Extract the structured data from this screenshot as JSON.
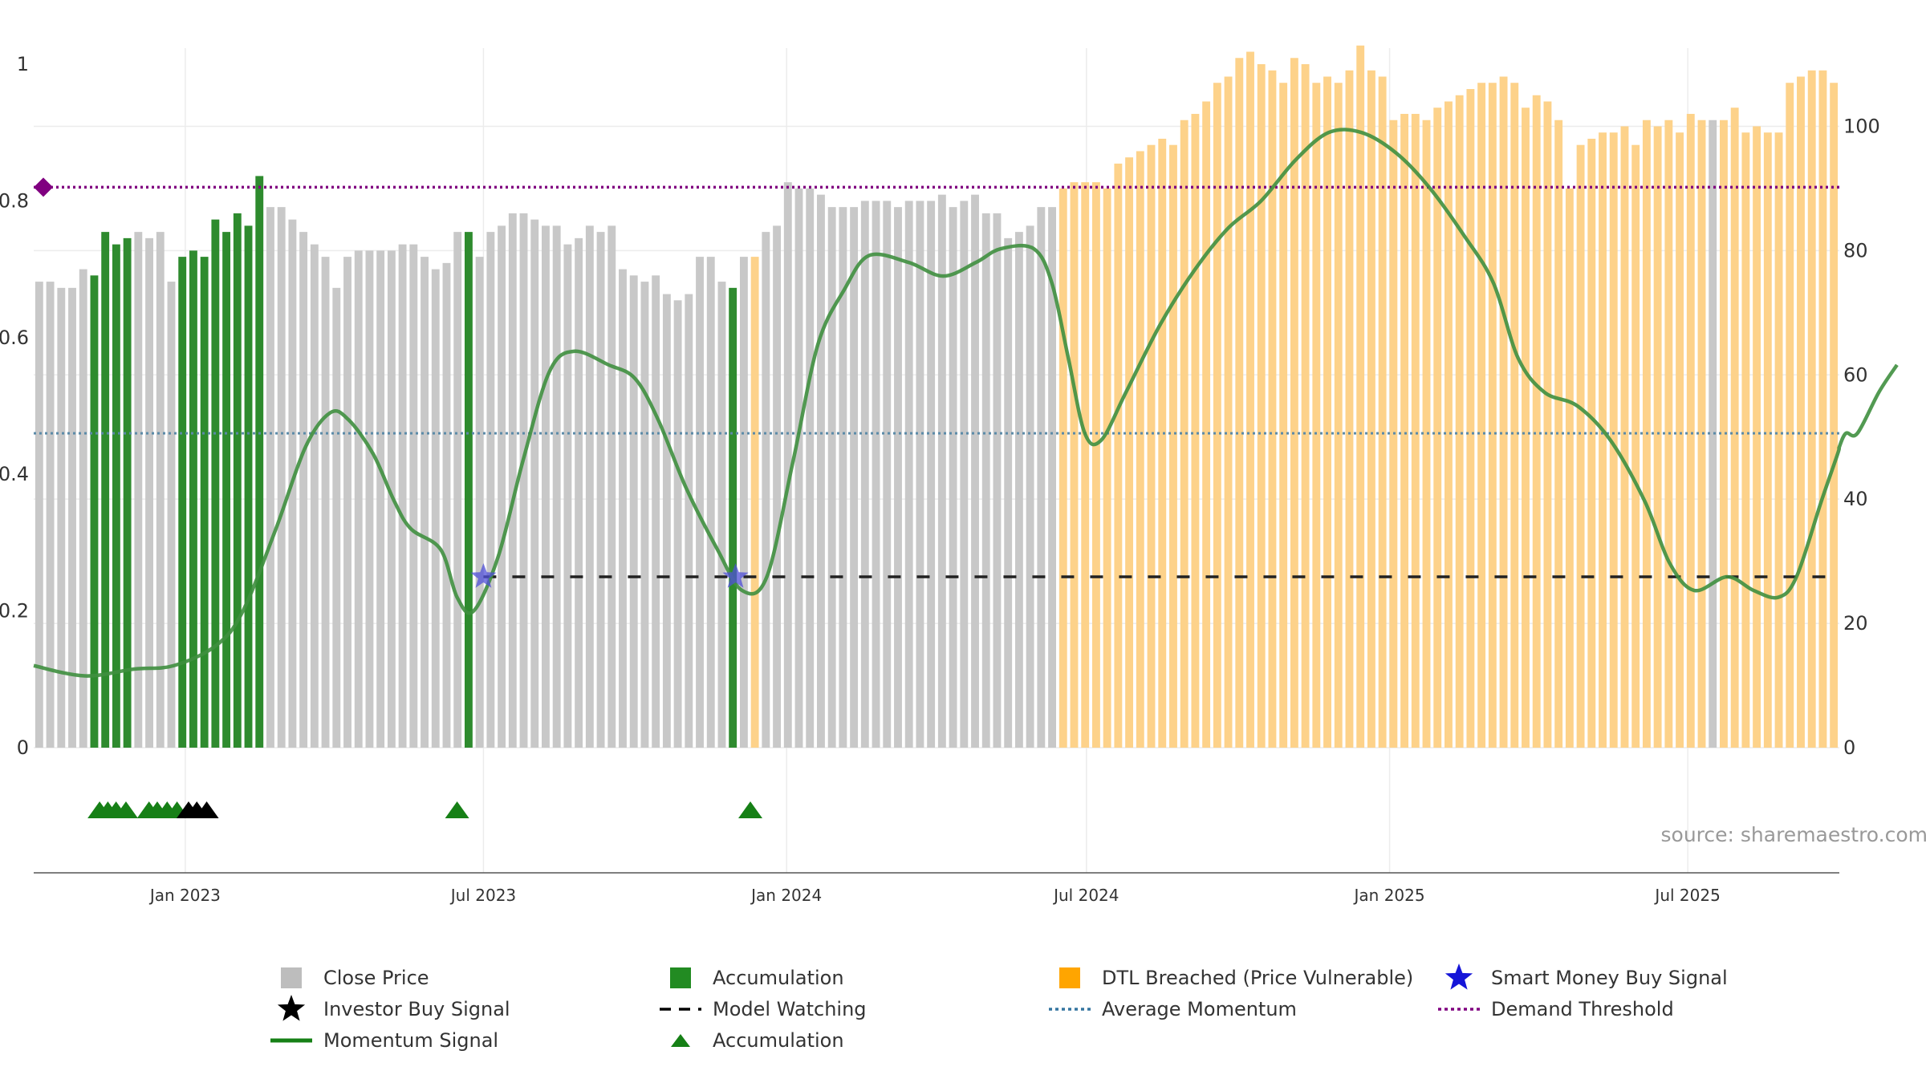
{
  "chart_data": {
    "type": "bar",
    "source_text": "source: sharemaestro.com",
    "left_axis": {
      "ylim": [
        0,
        1
      ],
      "ticks": [
        "0",
        "0.2",
        "0.4",
        "0.6",
        "0.8",
        "1"
      ],
      "tick_values": [
        0,
        0.2,
        0.4,
        0.6,
        0.8,
        1
      ]
    },
    "right_axis": {
      "ylim": [
        0,
        110
      ],
      "ticks": [
        "0",
        "20",
        "40",
        "60",
        "80",
        "100"
      ],
      "tick_values": [
        0,
        20,
        40,
        60,
        80,
        100
      ]
    },
    "x_axis": {
      "start": "2022-10-01",
      "end": "2025-10-01",
      "date_ticks": [
        {
          "label": "Jan 2023",
          "date": "2023-01-01"
        },
        {
          "label": "Jul 2023",
          "date": "2023-07-01"
        },
        {
          "label": "Jan 2024",
          "date": "2024-01-01"
        },
        {
          "label": "Jul 2024",
          "date": "2024-07-01"
        },
        {
          "label": "Jan 2025",
          "date": "2025-01-01"
        },
        {
          "label": "Jul 2025",
          "date": "2025-07-01"
        }
      ]
    },
    "close_price": {
      "axis": "right",
      "values": [
        75,
        75,
        74,
        74,
        77,
        76,
        83,
        81,
        82,
        83,
        82,
        83,
        75,
        79,
        80,
        79,
        85,
        83,
        86,
        84,
        92,
        87,
        87,
        85,
        83,
        81,
        79,
        74,
        79,
        80,
        80,
        80,
        80,
        81,
        81,
        79,
        77,
        78,
        83,
        83,
        79,
        83,
        84,
        86,
        86,
        85,
        84,
        84,
        81,
        82,
        84,
        83,
        84,
        77,
        76,
        75,
        76,
        73,
        72,
        73,
        79,
        79,
        75,
        74,
        79,
        79,
        83,
        84,
        91,
        90,
        90,
        89,
        87,
        87,
        87,
        88,
        88,
        88,
        87,
        88,
        88,
        88,
        89,
        87,
        88,
        89,
        86,
        86,
        82,
        83,
        84,
        87,
        87,
        90,
        91,
        91,
        91,
        90,
        94,
        95,
        96,
        97,
        98,
        97,
        101,
        102,
        104,
        107,
        108,
        111,
        112,
        110,
        109,
        107,
        111,
        110,
        107,
        108,
        107,
        109,
        113,
        109,
        108,
        101,
        102,
        102,
        101,
        103,
        104,
        105,
        106,
        107,
        107,
        108,
        107,
        103,
        105,
        104,
        101,
        90,
        97,
        98,
        99,
        99,
        100,
        97,
        101,
        100,
        101,
        99,
        102,
        101,
        101,
        101,
        103,
        99,
        100,
        99,
        99,
        107,
        108,
        109,
        109,
        107
      ],
      "state": "GGGGGAAAAGGGGAAAAAAAAGGGGGGGGGGGGGGGGGGAGGGGGGGGGGGGGGGGGGGGGGGAGDGGGGGGGGGGGGGGGGGGGGGGGGGGGDDDDDDDDDDDDDDDDDDDDDDDDDDDDDDDDDDDDDDDDDDDDDDDDDDDDDDDDDDDGDDDDDDDDDDDDDDDDDDDDDDDD",
      "state_key": {
        "G": "Close Price",
        "A": "Accumulation",
        "D": "DTL Breached (Price Vulnerable)"
      }
    },
    "momentum_signal": {
      "axis": "left",
      "points": [
        [
          "2022-10-01",
          0.12
        ],
        [
          "2022-11-01",
          0.105
        ],
        [
          "2022-12-01",
          0.115
        ],
        [
          "2022-12-25",
          0.12
        ],
        [
          "2023-01-20",
          0.15
        ],
        [
          "2023-02-05",
          0.2
        ],
        [
          "2023-02-25",
          0.32
        ],
        [
          "2023-03-15",
          0.44
        ],
        [
          "2023-03-30",
          0.49
        ],
        [
          "2023-04-10",
          0.48
        ],
        [
          "2023-04-25",
          0.43
        ],
        [
          "2023-05-08",
          0.36
        ],
        [
          "2023-05-18",
          0.32
        ],
        [
          "2023-06-05",
          0.29
        ],
        [
          "2023-06-15",
          0.22
        ],
        [
          "2023-06-25",
          0.2
        ],
        [
          "2023-07-10",
          0.28
        ],
        [
          "2023-07-25",
          0.42
        ],
        [
          "2023-08-10",
          0.55
        ],
        [
          "2023-08-25",
          0.58
        ],
        [
          "2023-09-15",
          0.56
        ],
        [
          "2023-10-01",
          0.54
        ],
        [
          "2023-10-15",
          0.48
        ],
        [
          "2023-11-01",
          0.38
        ],
        [
          "2023-11-20",
          0.29
        ],
        [
          "2023-12-05",
          0.23
        ],
        [
          "2023-12-20",
          0.25
        ],
        [
          "2024-01-05",
          0.42
        ],
        [
          "2024-01-20",
          0.59
        ],
        [
          "2024-02-05",
          0.67
        ],
        [
          "2024-02-20",
          0.72
        ],
        [
          "2024-03-15",
          0.71
        ],
        [
          "2024-04-05",
          0.69
        ],
        [
          "2024-04-25",
          0.71
        ],
        [
          "2024-05-10",
          0.73
        ],
        [
          "2024-05-30",
          0.73
        ],
        [
          "2024-06-10",
          0.68
        ],
        [
          "2024-06-20",
          0.57
        ],
        [
          "2024-06-30",
          0.46
        ],
        [
          "2024-07-10",
          0.45
        ],
        [
          "2024-07-25",
          0.52
        ],
        [
          "2024-08-15",
          0.62
        ],
        [
          "2024-09-05",
          0.7
        ],
        [
          "2024-09-25",
          0.76
        ],
        [
          "2024-10-15",
          0.8
        ],
        [
          "2024-11-05",
          0.86
        ],
        [
          "2024-11-25",
          0.9
        ],
        [
          "2024-12-15",
          0.9
        ],
        [
          "2025-01-05",
          0.87
        ],
        [
          "2025-01-25",
          0.82
        ],
        [
          "2025-02-15",
          0.75
        ],
        [
          "2025-03-05",
          0.68
        ],
        [
          "2025-03-20",
          0.57
        ],
        [
          "2025-04-05",
          0.52
        ],
        [
          "2025-04-25",
          0.5
        ],
        [
          "2025-05-15",
          0.45
        ],
        [
          "2025-06-05",
          0.36
        ],
        [
          "2025-06-20",
          0.27
        ],
        [
          "2025-07-05",
          0.23
        ],
        [
          "2025-07-25",
          0.25
        ],
        [
          "2025-08-10",
          0.23
        ],
        [
          "2025-08-25",
          0.22
        ],
        [
          "2025-09-05",
          0.25
        ],
        [
          "2025-09-20",
          0.36
        ],
        [
          "2025-09-30",
          0.43
        ],
        [
          "2025-10-01",
          0.44
        ],
        [
          "2025-10-05",
          0.46
        ],
        [
          "2025-10-12",
          0.46
        ],
        [
          "2025-10-25",
          0.52
        ],
        [
          "2025-11-05",
          0.56
        ]
      ]
    },
    "average_momentum": {
      "axis": "left",
      "value": 0.46
    },
    "demand_threshold": {
      "axis": "left",
      "value": 0.82
    },
    "model_watching": {
      "axis": "left",
      "value": 0.25,
      "start": "2023-07-01"
    },
    "smart_money_buy_signals": [
      {
        "date": "2023-07-01",
        "value": 0.25
      },
      {
        "date": "2023-12-01",
        "value": 0.25
      }
    ],
    "accumulation_triangles": [
      "2022-11-10",
      "2022-11-15",
      "2022-11-20",
      "2022-11-26",
      "2022-12-10",
      "2022-12-15",
      "2022-12-21",
      "2022-12-27",
      "2023-06-15",
      "2023-12-10"
    ],
    "investor_buy_signals": [
      "2023-01-03",
      "2023-01-08",
      "2023-01-14"
    ],
    "colors": {
      "close": "#c8c8c8",
      "accumulation": "#2e8b2e",
      "dtl": "#fdd28a",
      "momentum": "#3f8f3f",
      "momentum_dtl": "#6b8e12",
      "avg": "#5b8aa8",
      "threshold": "#800080",
      "watching": "#222222",
      "star": "#5050d8",
      "triangle": "#168016",
      "invbuy": "#000000"
    },
    "legend": [
      {
        "label": "Close Price",
        "symbol": "square",
        "color": "#bdbdbd"
      },
      {
        "label": "Accumulation",
        "symbol": "square",
        "color": "#228B22"
      },
      {
        "label": "DTL Breached (Price Vulnerable)",
        "symbol": "square",
        "color": "#FFA500"
      },
      {
        "label": "Smart Money Buy Signal",
        "symbol": "star",
        "color": "#1515d8"
      },
      {
        "label": "Investor Buy Signal",
        "symbol": "star",
        "color": "#000000"
      },
      {
        "label": "Model Watching",
        "symbol": "dashed",
        "color": "#000000"
      },
      {
        "label": "Average Momentum",
        "symbol": "dotted",
        "color": "#3575a0"
      },
      {
        "label": "Demand Threshold",
        "symbol": "dotted",
        "color": "#800080"
      },
      {
        "label": "Momentum Signal",
        "symbol": "line",
        "color": "#168016"
      },
      {
        "label": "Accumulation",
        "symbol": "triangle",
        "color": "#168016"
      }
    ]
  }
}
